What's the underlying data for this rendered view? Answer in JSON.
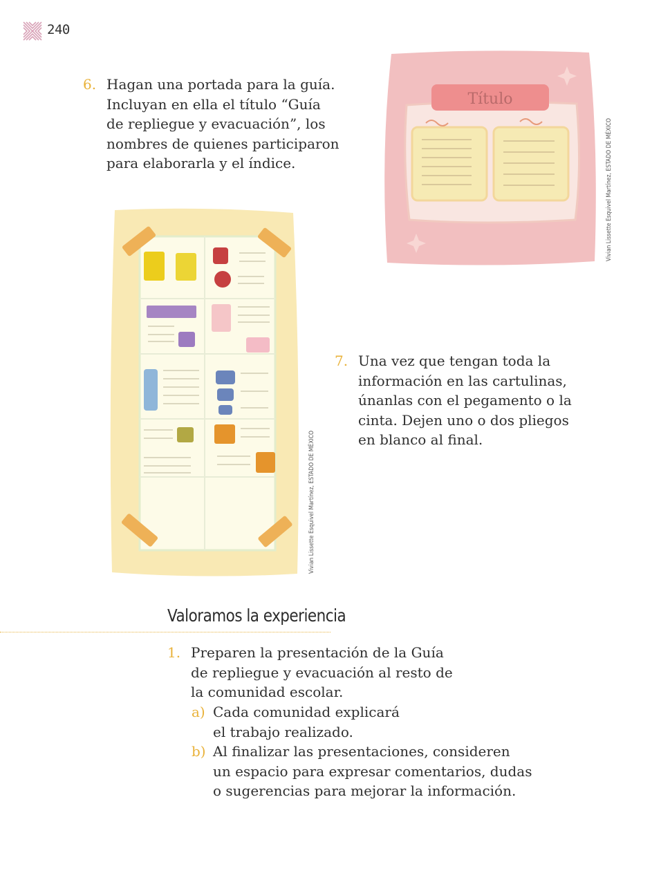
{
  "page_number": "240",
  "colors": {
    "accent_yellow": "#e9b23a",
    "logo_pink": "#d9a3b8",
    "text": "#2f2f2f"
  },
  "steps_top": [
    {
      "number": "6.",
      "lines": [
        "Hagan una portada para la guía.",
        "Incluyan en ella el título “Guía",
        "de repliegue y evacuación”, los",
        "nombres de quienes participaron",
        "para elaborarla y el índice."
      ]
    },
    {
      "number": "7.",
      "lines": [
        "Una vez que tengan toda la",
        "información en las cartulinas,",
        "únanlas con el pegamento o la",
        "cinta. Dejen uno o dos pliegos",
        "en blanco al final."
      ]
    }
  ],
  "illustration_cover": {
    "title_label": "Título",
    "credit": "Vivian Lissette Esquivel Martínez, ESTADO DE MÉXICO"
  },
  "illustration_guide": {
    "credit": "Vivian Lissette Esquivel Martínez, ESTADO DE MÉXICO"
  },
  "section": {
    "title": "Valoramos la experiencia",
    "item": {
      "number": "1.",
      "lines": [
        "Preparen la presentación de la Guía",
        "de repliegue y evacuación al resto de",
        "la comunidad escolar."
      ]
    },
    "subitems": [
      {
        "letter": "a)",
        "lines": [
          "Cada comunidad explicará",
          "el trabajo realizado."
        ]
      },
      {
        "letter": "b)",
        "lines": [
          "Al finalizar las presentaciones, consideren",
          "un espacio para expresar comentarios, dudas",
          "o sugerencias para mejorar la información."
        ]
      }
    ]
  }
}
